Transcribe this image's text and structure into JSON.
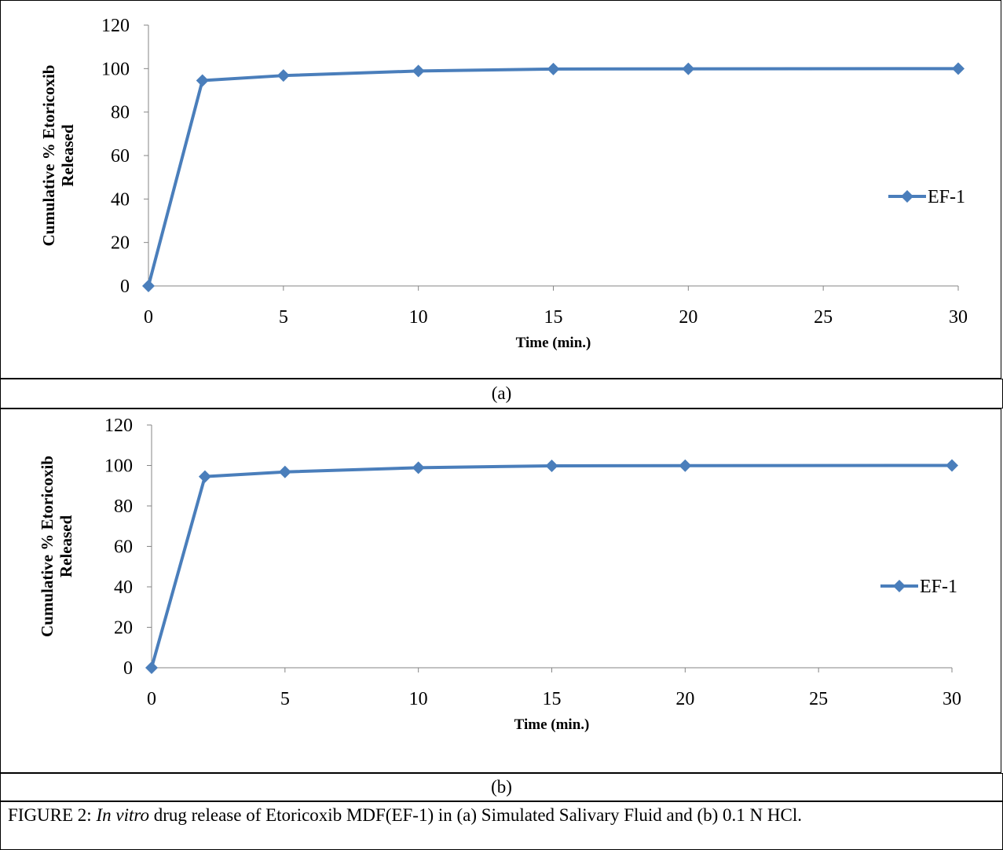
{
  "charts": [
    {
      "panel_label": "(a)",
      "chart_data": {
        "type": "line",
        "title": "",
        "xlabel": "Time (min.)",
        "ylabel_lines": [
          "Cumulative % Etoricoxib",
          "Released"
        ],
        "xlim": [
          0,
          30
        ],
        "ylim": [
          0,
          120
        ],
        "x_ticks": [
          "0",
          "5",
          "10",
          "15",
          "20",
          "25",
          "30"
        ],
        "y_ticks": [
          "0",
          "20",
          "40",
          "60",
          "80",
          "100",
          "120"
        ],
        "grid": false,
        "legend_position": "right",
        "series": [
          {
            "name": "EF-1",
            "color": "#4a7ebb",
            "x": [
              0,
              2,
              5,
              10,
              15,
              20,
              30
            ],
            "y": [
              0,
              94.5,
              96.8,
              98.9,
              99.8,
              99.9,
              100
            ]
          }
        ]
      }
    },
    {
      "panel_label": "(b)",
      "chart_data": {
        "type": "line",
        "title": "",
        "xlabel": "Time (min.)",
        "ylabel_lines": [
          "Cumulative % Etoricoxib",
          "Released"
        ],
        "xlim": [
          0,
          30
        ],
        "ylim": [
          0,
          120
        ],
        "x_ticks": [
          "0",
          "5",
          "10",
          "15",
          "20",
          "25",
          "30"
        ],
        "y_ticks": [
          "0",
          "20",
          "40",
          "60",
          "80",
          "100",
          "120"
        ],
        "grid": false,
        "legend_position": "right",
        "series": [
          {
            "name": "EF-1",
            "color": "#4a7ebb",
            "x": [
              0,
              2,
              5,
              10,
              15,
              20,
              30
            ],
            "y": [
              0,
              94.5,
              96.8,
              98.9,
              99.8,
              99.9,
              100
            ]
          }
        ]
      }
    }
  ],
  "caption": {
    "prefix": "FIGURE 2: ",
    "italic": "In vitro",
    "suffix": " drug release of Etoricoxib MDF(EF-1) in (a) Simulated Salivary Fluid and (b) 0.1 N HCl."
  }
}
